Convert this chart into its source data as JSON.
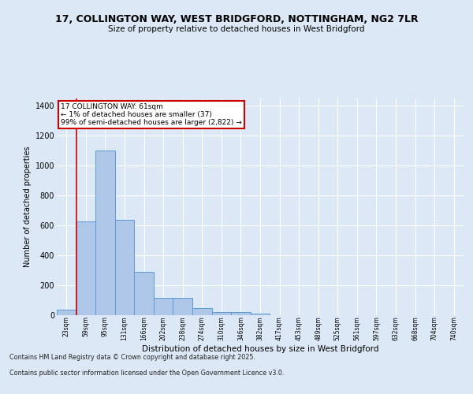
{
  "title_line1": "17, COLLINGTON WAY, WEST BRIDGFORD, NOTTINGHAM, NG2 7LR",
  "title_line2": "Size of property relative to detached houses in West Bridgford",
  "xlabel": "Distribution of detached houses by size in West Bridgford",
  "ylabel": "Number of detached properties",
  "categories": [
    "23sqm",
    "59sqm",
    "95sqm",
    "131sqm",
    "166sqm",
    "202sqm",
    "238sqm",
    "274sqm",
    "310sqm",
    "346sqm",
    "382sqm",
    "417sqm",
    "453sqm",
    "489sqm",
    "525sqm",
    "561sqm",
    "597sqm",
    "632sqm",
    "668sqm",
    "704sqm",
    "740sqm"
  ],
  "bar_values": [
    35,
    625,
    1100,
    640,
    290,
    115,
    115,
    48,
    22,
    22,
    10,
    0,
    0,
    0,
    0,
    0,
    0,
    0,
    0,
    0,
    0
  ],
  "bar_color": "#aec6e8",
  "bar_edge_color": "#5b9bd5",
  "ylim": [
    0,
    1450
  ],
  "yticks": [
    0,
    200,
    400,
    600,
    800,
    1000,
    1200,
    1400
  ],
  "vline_x": 0.5,
  "annotation_title": "17 COLLINGTON WAY: 61sqm",
  "annotation_line1": "← 1% of detached houses are smaller (37)",
  "annotation_line2": "99% of semi-detached houses are larger (2,822) →",
  "vline_color": "#cc0000",
  "bg_color": "#dce8f5",
  "plot_bg_color": "#dce8f5",
  "footer_line1": "Contains HM Land Registry data © Crown copyright and database right 2025.",
  "footer_line2": "Contains public sector information licensed under the Open Government Licence v3.0."
}
